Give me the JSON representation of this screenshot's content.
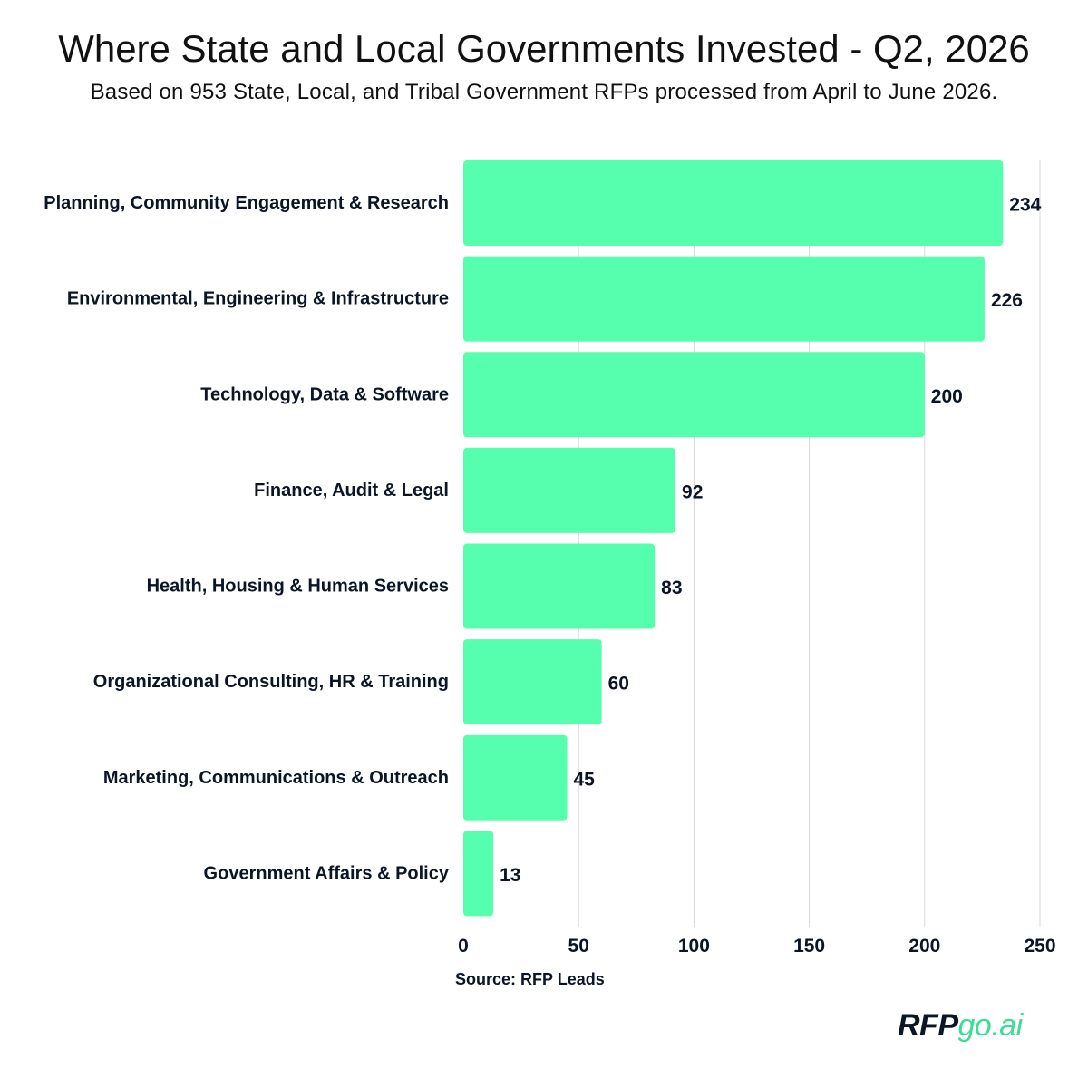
{
  "header": {
    "title": "Where State and Local Governments Invested - Q2, 2026",
    "subtitle": "Based on 953 State, Local, and Tribal Government RFPs processed from April to June 2026."
  },
  "footer": {
    "source": "Source: RFP Leads",
    "logo_part1": "RFP",
    "logo_part2": "go.ai"
  },
  "colors": {
    "bar": "#56ffad",
    "grid": "#d9d9d9",
    "text": "#0b1526",
    "logo_accent": "#3ddc97"
  },
  "chart_data": {
    "type": "bar",
    "orientation": "horizontal",
    "title": "Where State and Local Governments Invested - Q2, 2026",
    "subtitle": "Based on 953 State, Local, and Tribal Government RFPs processed from April to June 2026.",
    "xlabel": "",
    "ylabel": "",
    "categories": [
      "Planning, Community Engagement & Research",
      "Environmental, Engineering & Infrastructure",
      "Technology, Data & Software",
      "Finance, Audit & Legal",
      "Health, Housing & Human Services",
      "Organizational Consulting, HR & Training",
      "Marketing, Communications & Outreach",
      "Government Affairs & Policy"
    ],
    "values": [
      234,
      226,
      200,
      92,
      83,
      60,
      45,
      13
    ],
    "xlim": [
      0,
      250
    ],
    "xticks": [
      0,
      50,
      100,
      150,
      200,
      250
    ],
    "grid": "vertical",
    "data_labels": true
  }
}
